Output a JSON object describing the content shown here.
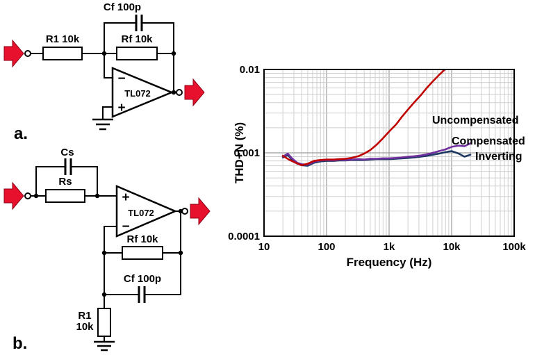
{
  "figure": {
    "panel_a": "a.",
    "panel_b": "b."
  },
  "colors": {
    "arrow_red": "#e8112d"
  },
  "circuit_a": {
    "cf": "Cf 100p",
    "r1": "R1 10k",
    "rf": "Rf 10k",
    "opamp": "TL072",
    "inverting_input": "−",
    "noninverting_input": "+"
  },
  "circuit_b": {
    "cs": "Cs",
    "rs": "Rs",
    "opamp": "TL072",
    "noninverting_input": "+",
    "inverting_input": "−",
    "rf": "Rf 10k",
    "cf": "Cf 100p",
    "r1_line1": "R1",
    "r1_line2": "10k"
  },
  "chart_data": {
    "type": "line",
    "title": "",
    "xlabel": "Frequency (Hz)",
    "ylabel": "THD+N (%)",
    "x_scale": "log",
    "y_scale": "log",
    "xlim": [
      10,
      100000
    ],
    "ylim": [
      0.0001,
      0.01
    ],
    "grid": "log major and minor gridlines, gray",
    "legend_position": "labels next to curves, right side",
    "x_ticks": [
      {
        "value": 10,
        "label": "10"
      },
      {
        "value": 100,
        "label": "100"
      },
      {
        "value": 1000,
        "label": "1k"
      },
      {
        "value": 10000,
        "label": "10k"
      },
      {
        "value": 100000,
        "label": "100k"
      }
    ],
    "y_ticks": [
      {
        "value": 0.01,
        "label": "0.01"
      },
      {
        "value": 0.001,
        "label": "0.001"
      },
      {
        "value": 0.0001,
        "label": "0.0001"
      }
    ],
    "series": [
      {
        "name": "Uncompensated",
        "color": "#c00000",
        "points": [
          [
            20,
            0.00092
          ],
          [
            25,
            0.00083
          ],
          [
            32,
            0.00076
          ],
          [
            40,
            0.00071
          ],
          [
            50,
            0.00074
          ],
          [
            63,
            0.0008
          ],
          [
            80,
            0.00082
          ],
          [
            100,
            0.00083
          ],
          [
            130,
            0.00083
          ],
          [
            160,
            0.00084
          ],
          [
            200,
            0.00085
          ],
          [
            250,
            0.00087
          ],
          [
            320,
            0.00091
          ],
          [
            400,
            0.00098
          ],
          [
            500,
            0.00108
          ],
          [
            630,
            0.00125
          ],
          [
            800,
            0.0015
          ],
          [
            1000,
            0.0018
          ],
          [
            1300,
            0.0022
          ],
          [
            1600,
            0.0027
          ],
          [
            2000,
            0.0033
          ],
          [
            2500,
            0.004
          ],
          [
            3200,
            0.0049
          ],
          [
            4000,
            0.006
          ],
          [
            5000,
            0.0072
          ],
          [
            6300,
            0.0086
          ],
          [
            8000,
            0.0102
          ],
          [
            10000,
            0.012
          ]
        ]
      },
      {
        "name": "Compensated",
        "color": "#7030a0",
        "points": [
          [
            20,
            0.0009
          ],
          [
            24,
            0.00098
          ],
          [
            28,
            0.00086
          ],
          [
            34,
            0.00076
          ],
          [
            40,
            0.00073
          ],
          [
            50,
            0.00072
          ],
          [
            63,
            0.00078
          ],
          [
            80,
            0.00081
          ],
          [
            100,
            0.00082
          ],
          [
            130,
            0.00081
          ],
          [
            160,
            0.00083
          ],
          [
            200,
            0.00082
          ],
          [
            250,
            0.00083
          ],
          [
            320,
            0.00084
          ],
          [
            400,
            0.00083
          ],
          [
            500,
            0.00085
          ],
          [
            630,
            0.00085
          ],
          [
            800,
            0.00086
          ],
          [
            1000,
            0.00086
          ],
          [
            1300,
            0.00087
          ],
          [
            1600,
            0.00088
          ],
          [
            2000,
            0.0009
          ],
          [
            2500,
            0.00091
          ],
          [
            3200,
            0.00093
          ],
          [
            4000,
            0.00096
          ],
          [
            5000,
            0.001
          ],
          [
            6300,
            0.00105
          ],
          [
            8000,
            0.0011
          ],
          [
            10000,
            0.00118
          ],
          [
            13000,
            0.00122
          ],
          [
            16000,
            0.0012
          ],
          [
            20000,
            0.0013
          ]
        ]
      },
      {
        "name": "Inverting",
        "color": "#1f3864",
        "points": [
          [
            20,
            0.00088
          ],
          [
            24,
            0.00094
          ],
          [
            28,
            0.00083
          ],
          [
            34,
            0.00074
          ],
          [
            40,
            0.00071
          ],
          [
            50,
            0.0007
          ],
          [
            63,
            0.00076
          ],
          [
            80,
            0.00079
          ],
          [
            100,
            0.0008
          ],
          [
            130,
            0.0008
          ],
          [
            160,
            0.00081
          ],
          [
            200,
            0.00081
          ],
          [
            250,
            0.00082
          ],
          [
            320,
            0.00082
          ],
          [
            400,
            0.00082
          ],
          [
            500,
            0.00083
          ],
          [
            630,
            0.00084
          ],
          [
            800,
            0.00084
          ],
          [
            1000,
            0.00084
          ],
          [
            1300,
            0.00085
          ],
          [
            1600,
            0.00086
          ],
          [
            2000,
            0.00087
          ],
          [
            2500,
            0.00088
          ],
          [
            3200,
            0.0009
          ],
          [
            4000,
            0.00092
          ],
          [
            5000,
            0.00095
          ],
          [
            6300,
            0.00098
          ],
          [
            8000,
            0.00102
          ],
          [
            10000,
            0.00105
          ],
          [
            13000,
            0.00098
          ],
          [
            16000,
            0.0009
          ],
          [
            20000,
            0.00095
          ]
        ]
      }
    ]
  }
}
